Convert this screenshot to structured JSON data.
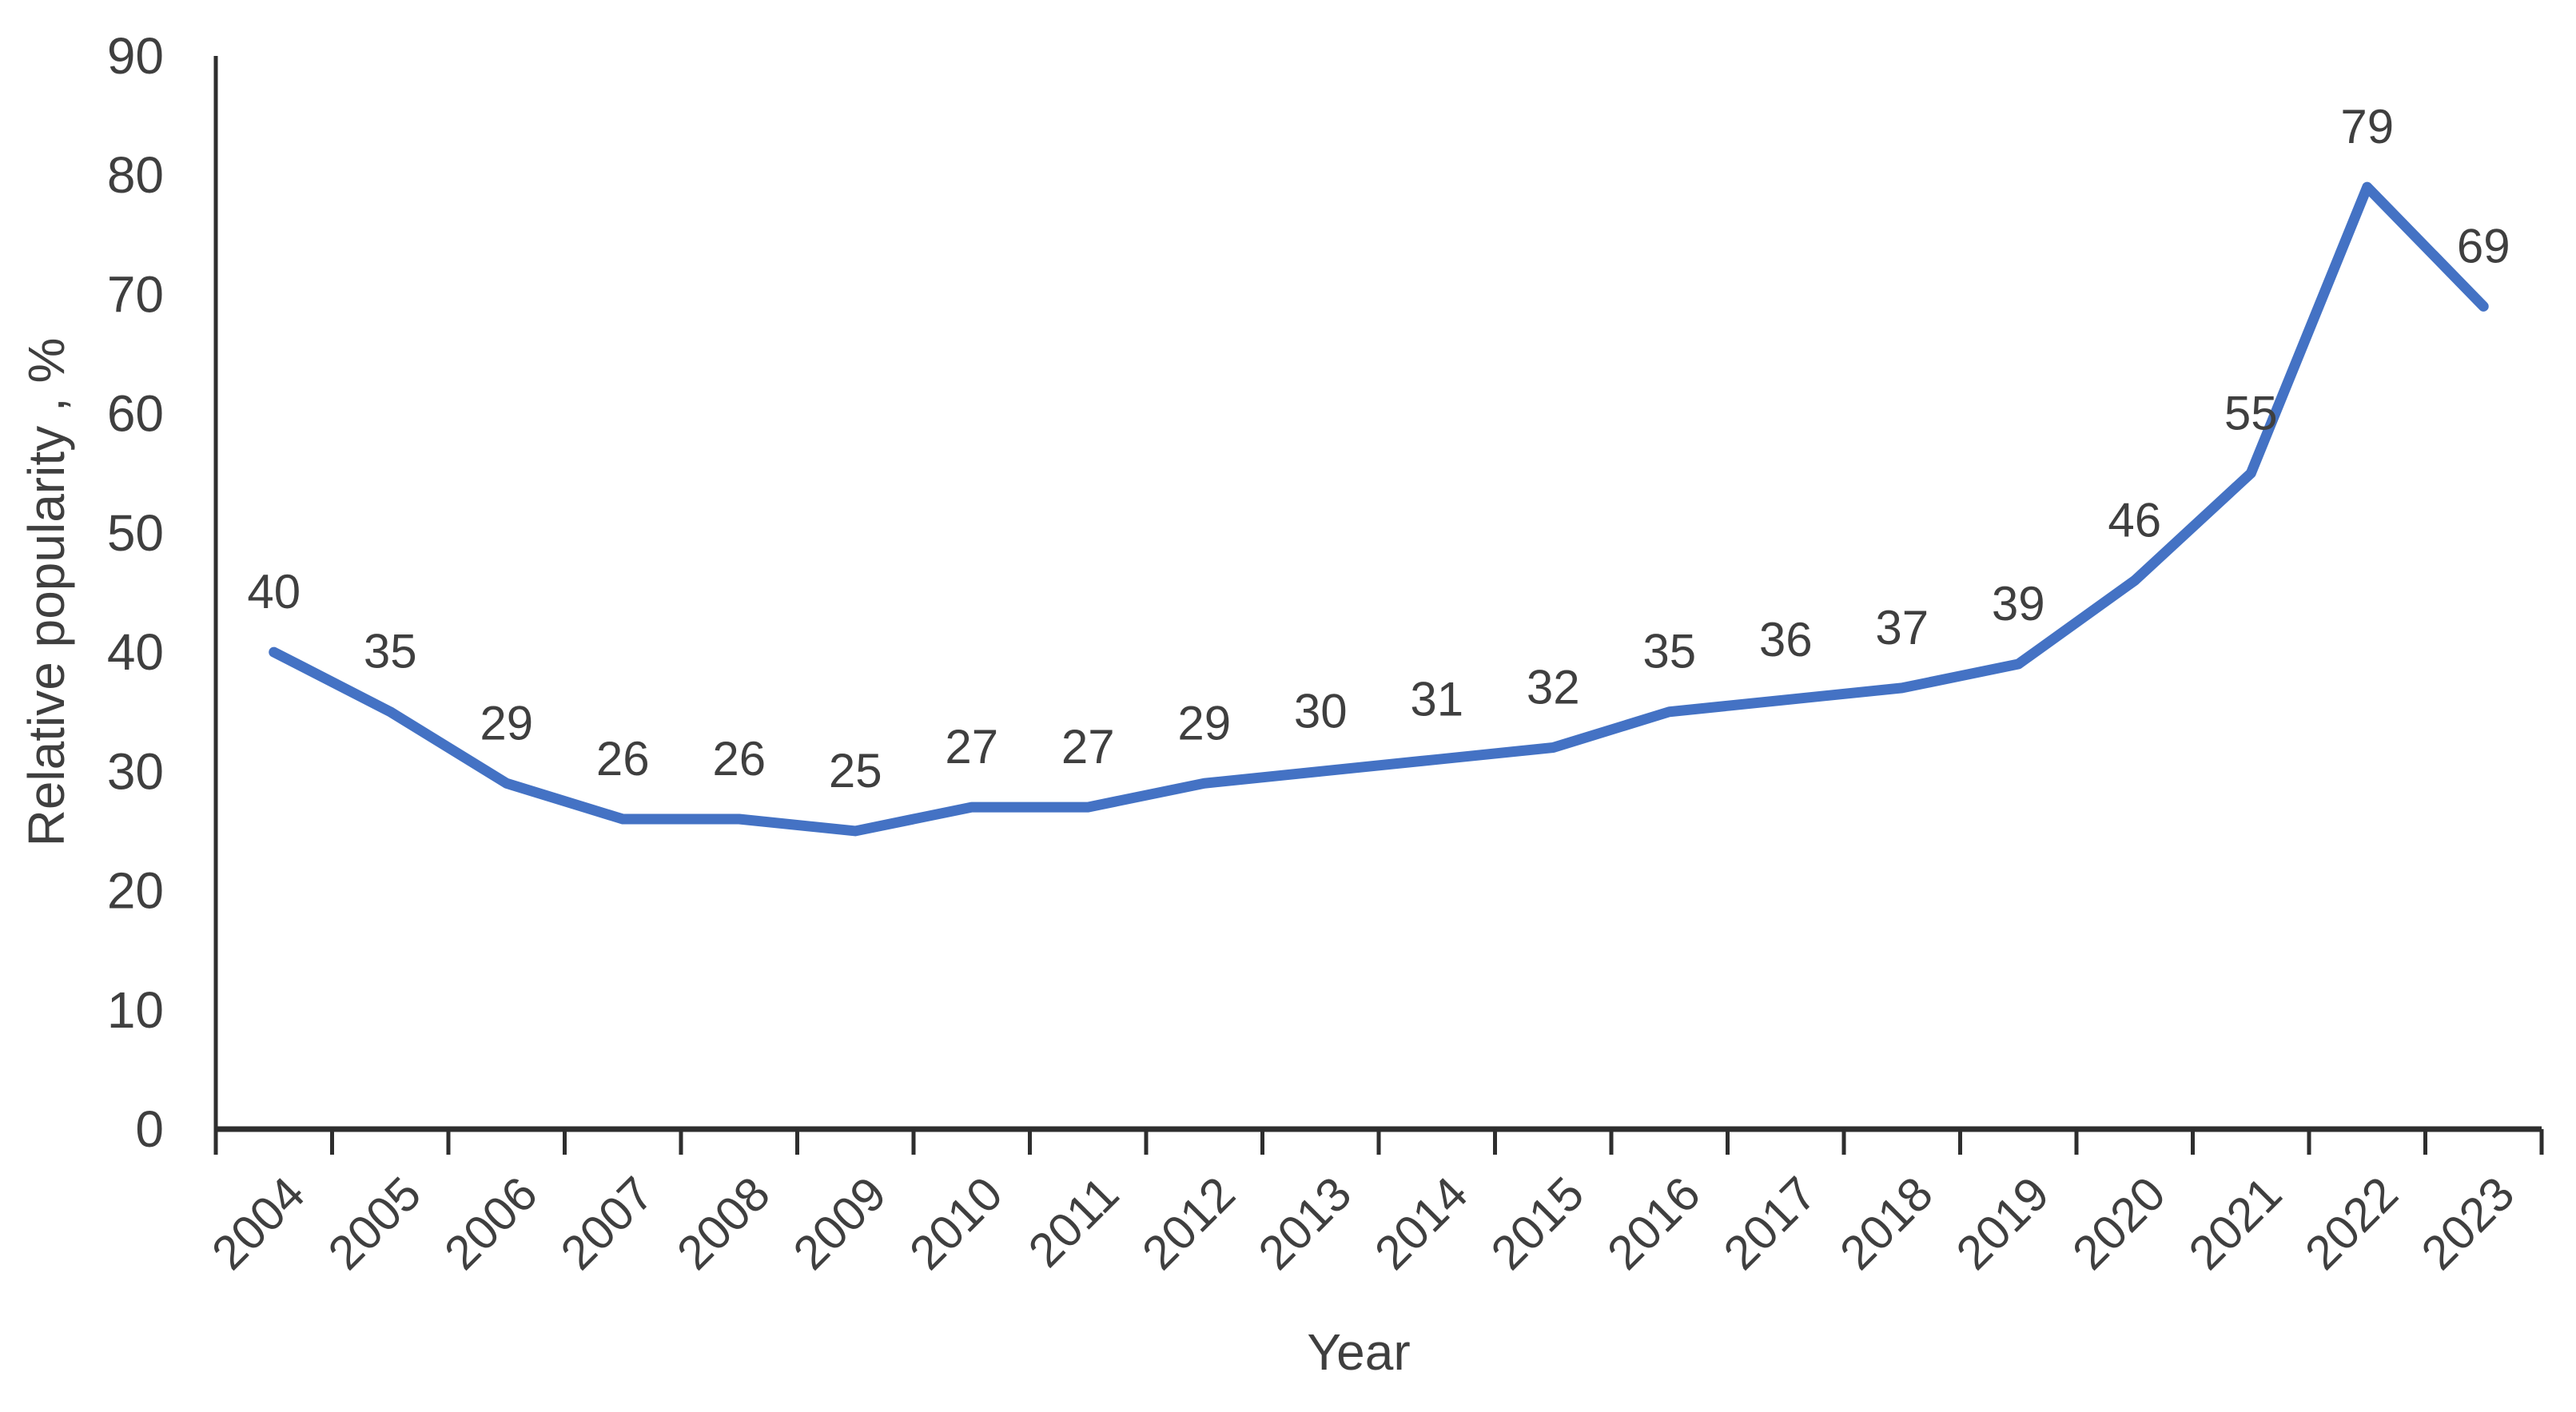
{
  "page": {
    "background": "#ffffff"
  },
  "chart_data": {
    "type": "line",
    "title": "",
    "xlabel": "Year",
    "ylabel": "Relative popularity , %",
    "categories": [
      "2004",
      "2005",
      "2006",
      "2007",
      "2008",
      "2009",
      "2010",
      "2011",
      "2012",
      "2013",
      "2014",
      "2015",
      "2016",
      "2017",
      "2018",
      "2019",
      "2020",
      "2021",
      "2022",
      "2023"
    ],
    "values": [
      40,
      35,
      29,
      26,
      26,
      25,
      27,
      27,
      29,
      30,
      31,
      32,
      35,
      36,
      37,
      39,
      46,
      55,
      79,
      69
    ],
    "ylim": [
      0,
      90
    ],
    "yticks": [
      0,
      10,
      20,
      30,
      40,
      50,
      60,
      70,
      80,
      90
    ],
    "grid": false,
    "legend": "none",
    "data_labels_shown": true,
    "data_label_position": "above",
    "x_tick_label_rotation_deg": -45,
    "colors": {
      "line": "#4472C4",
      "axis": "#2e2e2e",
      "text": "#3f3f3f"
    }
  }
}
